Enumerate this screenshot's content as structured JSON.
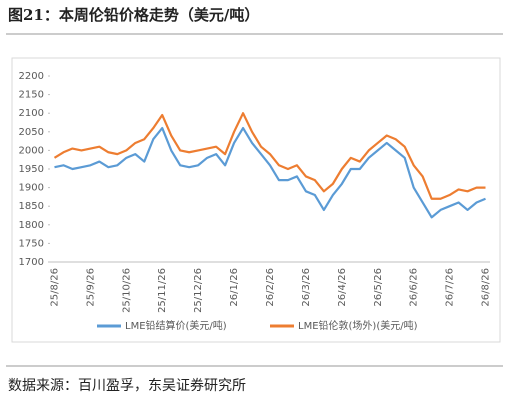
{
  "chart_data": {
    "type": "line",
    "title": "图21：本周伦铅价格走势（美元/吨）",
    "source": "数据来源：百川盈孚，东吴证券研究所",
    "categories": [
      "25/8/26",
      null,
      null,
      null,
      "25/9/26",
      null,
      null,
      null,
      "25/10/26",
      null,
      null,
      null,
      "25/11/26",
      null,
      null,
      null,
      "25/12/26",
      null,
      null,
      null,
      "26/1/26",
      null,
      null,
      null,
      "26/2/26",
      null,
      null,
      null,
      "26/3/26",
      null,
      null,
      null,
      "26/4/26",
      null,
      null,
      null,
      "26/5/26",
      null,
      null,
      null,
      "26/6/26",
      null,
      null,
      null,
      "26/7/26",
      null,
      null,
      null,
      "26/8/26"
    ],
    "series": [
      {
        "name": "LME铅结算价(美元/吨)",
        "color": "#5b9bd5",
        "values": [
          1955,
          1960,
          1950,
          1955,
          1960,
          1970,
          1955,
          1960,
          1980,
          1990,
          1970,
          2030,
          2060,
          2000,
          1960,
          1955,
          1960,
          1980,
          1990,
          1960,
          2020,
          2060,
          2020,
          1990,
          1960,
          1920,
          1920,
          1930,
          1890,
          1880,
          1840,
          1880,
          1910,
          1950,
          1950,
          1980,
          2000,
          2020,
          2000,
          1980,
          1900,
          1860,
          1820,
          1840,
          1850,
          1860,
          1840,
          1860,
          1870
        ]
      },
      {
        "name": "LME铅伦敦(场外)(美元/吨)",
        "color": "#ed7d31",
        "values": [
          1980,
          1995,
          2005,
          2000,
          2005,
          2010,
          1995,
          1990,
          2000,
          2020,
          2030,
          2060,
          2095,
          2040,
          2000,
          1995,
          2000,
          2005,
          2010,
          1990,
          2050,
          2100,
          2050,
          2010,
          1990,
          1960,
          1950,
          1960,
          1930,
          1920,
          1890,
          1910,
          1950,
          1980,
          1970,
          2000,
          2020,
          2040,
          2030,
          2010,
          1960,
          1930,
          1870,
          1870,
          1880,
          1895,
          1890,
          1900,
          1900
        ]
      }
    ],
    "ylim": [
      1700,
      2200
    ],
    "yticks": [
      1700,
      1750,
      1800,
      1850,
      1900,
      1950,
      2000,
      2050,
      2100,
      2150,
      2200
    ]
  }
}
